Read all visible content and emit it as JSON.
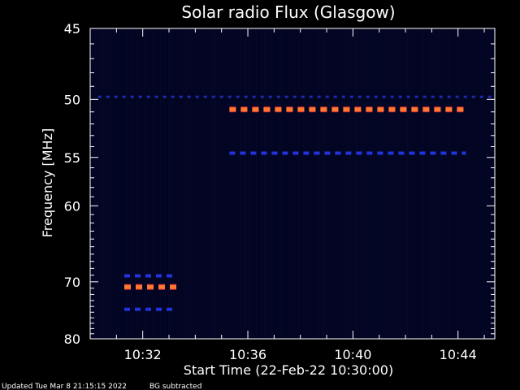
{
  "chart_data": {
    "type": "heatmap",
    "title": "Solar radio Flux (Glasgow)",
    "xlabel": "Start Time (22-Feb-22 10:30:00)",
    "ylabel": "Frequency [MHz]",
    "x_unit": "minutes past 10:30",
    "xlim": [
      0,
      15.4
    ],
    "ylim": [
      45,
      80
    ],
    "x_ticks": [
      {
        "value": 2,
        "label": "10:32"
      },
      {
        "value": 6,
        "label": "10:36"
      },
      {
        "value": 10,
        "label": "10:40"
      },
      {
        "value": 14,
        "label": "10:44"
      }
    ],
    "y_ticks": [
      {
        "value": 45,
        "label": "45"
      },
      {
        "value": 50,
        "label": "50"
      },
      {
        "value": 55,
        "label": "55"
      },
      {
        "value": 60,
        "label": "60"
      },
      {
        "value": 70,
        "label": "70"
      },
      {
        "value": 80,
        "label": "80"
      }
    ],
    "features": [
      {
        "freq": 49.8,
        "start": 0.3,
        "end": 15.4,
        "level": "low"
      },
      {
        "freq": 50.8,
        "start": 5.3,
        "end": 14.3,
        "level": "high"
      },
      {
        "freq": 54.6,
        "start": 5.3,
        "end": 14.3,
        "level": "medium"
      },
      {
        "freq": 69.1,
        "start": 1.3,
        "end": 3.3,
        "level": "medium"
      },
      {
        "freq": 70.8,
        "start": 1.3,
        "end": 3.3,
        "level": "high"
      },
      {
        "freq": 74.5,
        "start": 1.3,
        "end": 3.3,
        "level": "medium"
      }
    ],
    "colors": {
      "background": "#000000",
      "plot_background": "#020420",
      "low": "#1b2aa8",
      "medium": "#2233dd",
      "high": "#ff7a30",
      "high_edge": "#d6283b"
    }
  },
  "footer": {
    "updated": "Updated Tue Mar  8 21:15:15 2022",
    "note": "BG subtracted"
  }
}
